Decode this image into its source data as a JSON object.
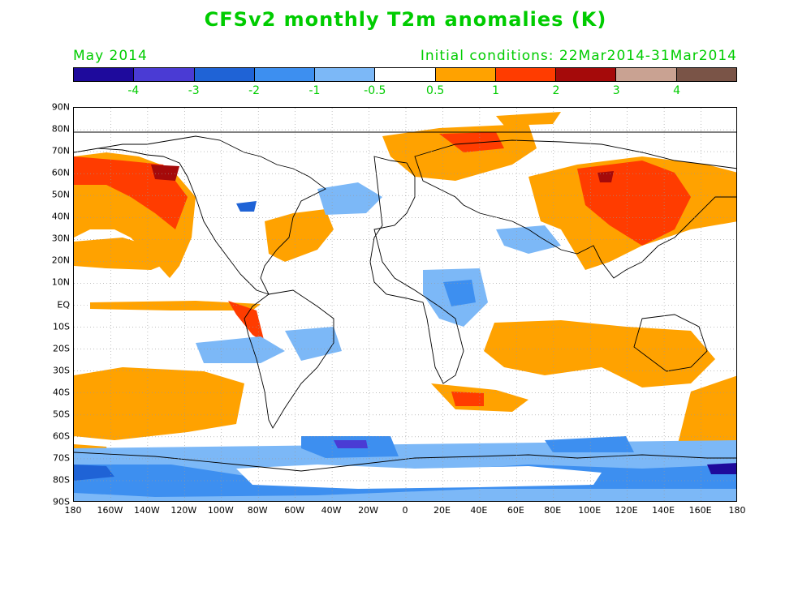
{
  "title": "CFSv2 monthly T2m anomalies (K)",
  "subtitle_left": "May 2014",
  "subtitle_right": "Initial conditions: 22Mar2014-31Mar2014",
  "text_color": "#00cc00",
  "colorbar": {
    "colors": [
      "#1e0a9c",
      "#4a3bd4",
      "#1f63d6",
      "#3d8ff0",
      "#7cb8f7",
      "#ffffff",
      "#ffa200",
      "#ff3c00",
      "#a50a0a",
      "#c9a292",
      "#7a5447"
    ],
    "labels": [
      "-4",
      "-3",
      "-2",
      "-1",
      "-0.5",
      "0.5",
      "1",
      "2",
      "3",
      "4"
    ]
  },
  "axes": {
    "lat_labels": [
      "90N",
      "80N",
      "70N",
      "60N",
      "50N",
      "40N",
      "30N",
      "20N",
      "10N",
      "EQ",
      "10S",
      "20S",
      "30S",
      "40S",
      "50S",
      "60S",
      "70S",
      "80S",
      "90S"
    ],
    "lon_labels": [
      "180",
      "160W",
      "140W",
      "120W",
      "100W",
      "80W",
      "60W",
      "40W",
      "20W",
      "0",
      "20E",
      "40E",
      "60E",
      "80E",
      "100E",
      "120E",
      "140E",
      "160E",
      "180"
    ]
  }
}
